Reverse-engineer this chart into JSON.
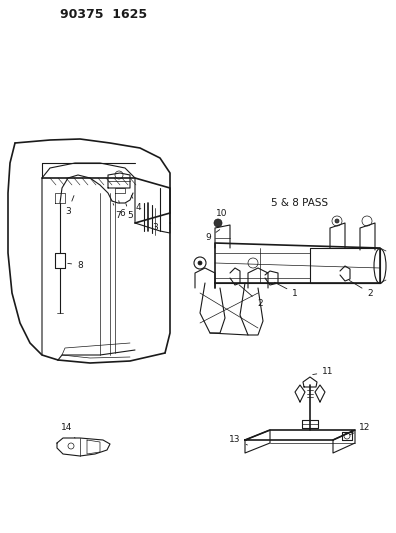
{
  "title": "90375  1625",
  "background_color": "#ffffff",
  "line_color": "#1a1a1a",
  "label_5_8_pass": "5 & 8 PASS",
  "figsize": [
    3.96,
    5.33
  ],
  "dpi": 100
}
